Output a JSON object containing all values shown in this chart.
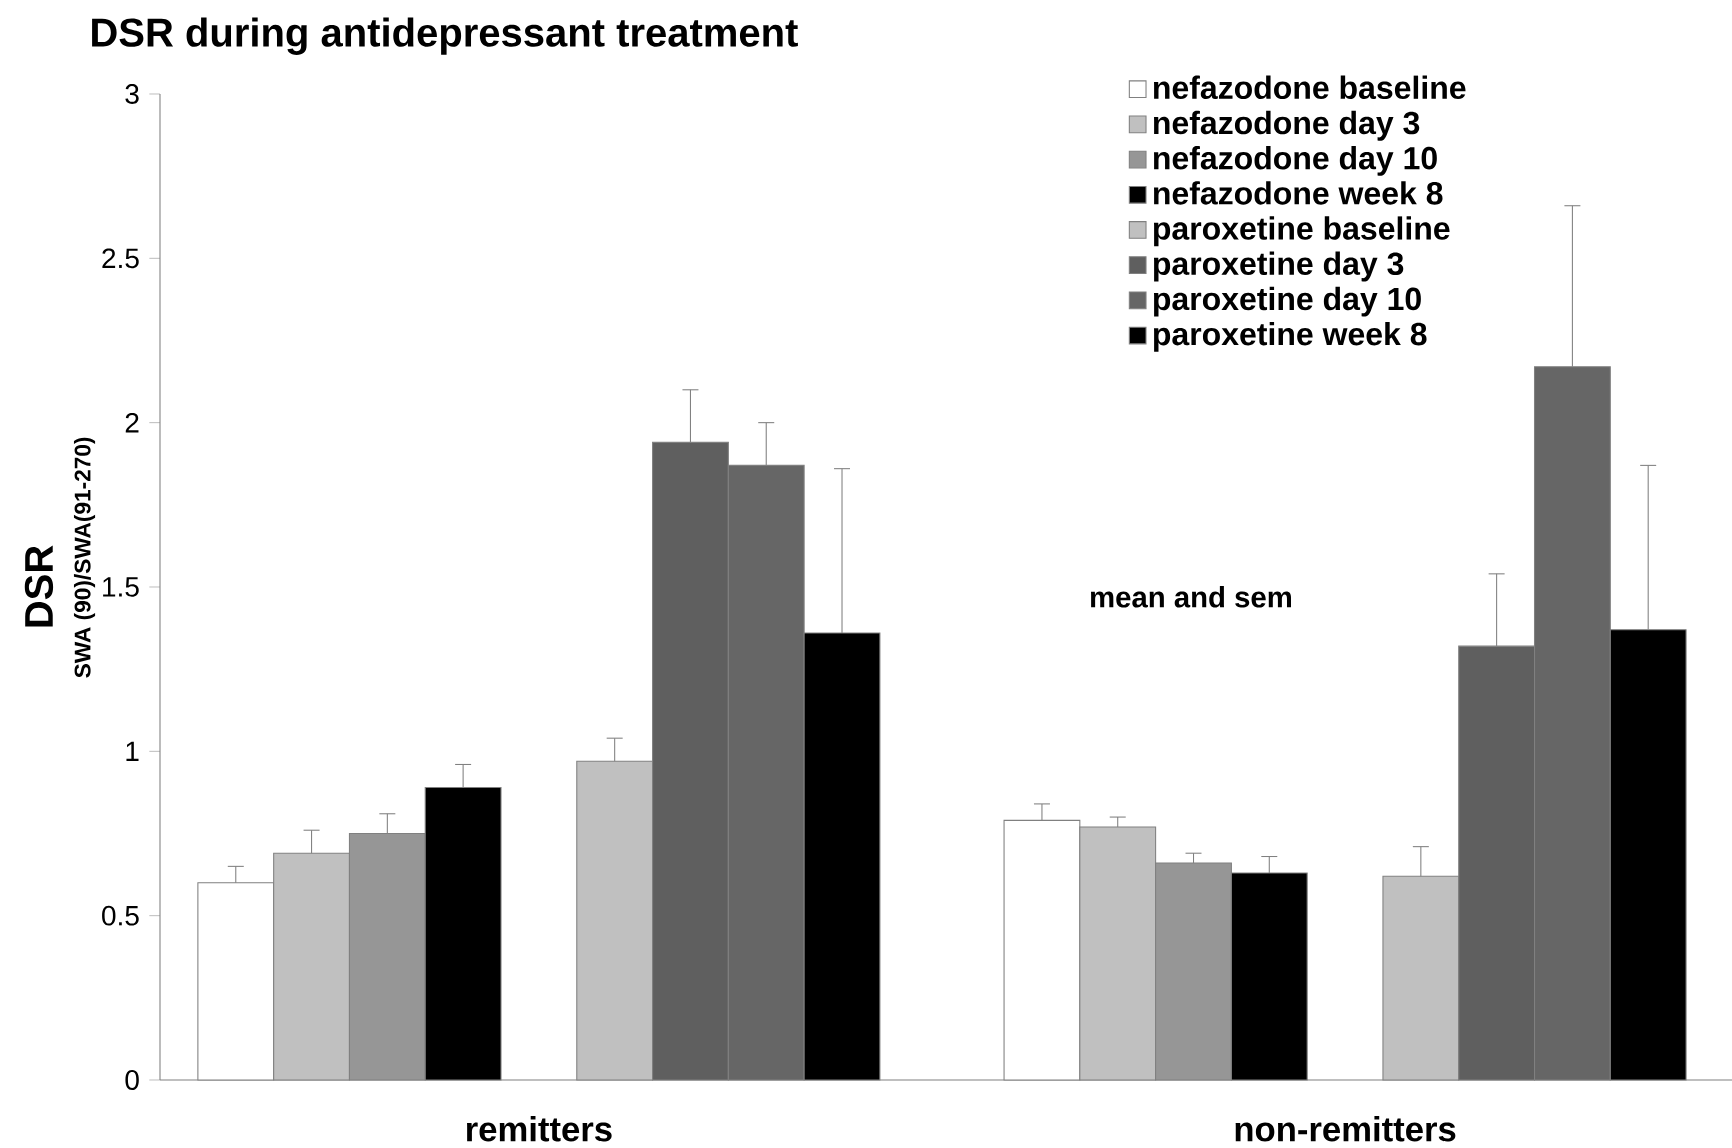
{
  "chart_data": {
    "type": "bar",
    "title": "DSR during antidepressant treatment",
    "ylabel": "DSR",
    "annotations": [
      "SWA (90)/SWA(91-270)",
      "mean and sem"
    ],
    "categories": [
      "remitters",
      "non-remitters"
    ],
    "ylim": [
      0,
      3
    ],
    "yticks": [
      0,
      0.5,
      1,
      1.5,
      2,
      2.5,
      3
    ],
    "legend": "top right",
    "series": [
      {
        "name": "nefazodone baseline",
        "color": "#ffffff",
        "values": [
          0.6,
          0.79
        ],
        "errors": [
          [
            0.6,
            0.65
          ],
          [
            0.79,
            0.84
          ]
        ]
      },
      {
        "name": "nefazodone day 3",
        "color": "#c0c0c0",
        "values": [
          0.69,
          0.77
        ],
        "errors": [
          [
            0.69,
            0.76
          ],
          [
            0.77,
            0.8
          ]
        ]
      },
      {
        "name": "nefazodone day 10",
        "color": "#969696",
        "values": [
          0.75,
          0.66
        ],
        "errors": [
          [
            0.75,
            0.81
          ],
          [
            0.66,
            0.69
          ]
        ]
      },
      {
        "name": "nefazodone week 8",
        "color": "#000000",
        "values": [
          0.89,
          0.63
        ],
        "errors": [
          [
            0.89,
            0.96
          ],
          [
            0.63,
            0.68
          ]
        ]
      },
      {
        "name": "paroxetine baseline",
        "color": "#c0c0c0",
        "values": [
          0.97,
          0.62
        ],
        "errors": [
          [
            0.97,
            1.04
          ],
          [
            0.62,
            0.71
          ]
        ]
      },
      {
        "name": "paroxetine day 3",
        "color": "#5f5f5f",
        "values": [
          1.94,
          1.32
        ],
        "errors": [
          [
            1.94,
            2.1
          ],
          [
            1.32,
            1.54
          ]
        ]
      },
      {
        "name": "paroxetine day 10",
        "color": "#666666",
        "values": [
          1.87,
          2.17
        ],
        "errors": [
          [
            1.87,
            2.0
          ],
          [
            2.17,
            2.66
          ]
        ]
      },
      {
        "name": "paroxetine week 8",
        "color": "#000000",
        "values": [
          1.36,
          1.37
        ],
        "errors": [
          [
            1.36,
            1.86
          ],
          [
            1.37,
            1.87
          ]
        ]
      }
    ]
  }
}
